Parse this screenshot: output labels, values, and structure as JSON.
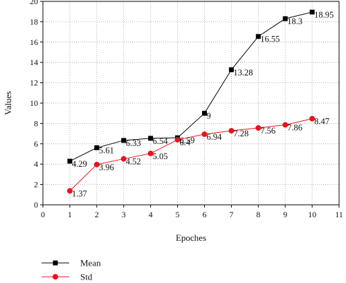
{
  "chart_data": {
    "type": "line",
    "title": "",
    "xlabel": "Epoches",
    "ylabel": "Values",
    "xlim": [
      0,
      11
    ],
    "ylim": [
      0,
      20
    ],
    "xticks": [
      0,
      1,
      2,
      3,
      4,
      5,
      6,
      7,
      8,
      9,
      10,
      11
    ],
    "yticks": [
      0,
      2,
      4,
      6,
      8,
      10,
      12,
      14,
      16,
      18,
      20
    ],
    "grid": "dotted",
    "legend_position": "bottom-left",
    "series": [
      {
        "name": "Mean",
        "marker": "square",
        "color": "#000000",
        "x": [
          1,
          2,
          3,
          4,
          5,
          6,
          7,
          8,
          9,
          10
        ],
        "y": [
          4.29,
          5.61,
          6.33,
          6.54,
          6.59,
          9,
          13.28,
          16.55,
          18.3,
          18.95
        ],
        "labels": [
          "4.29",
          "5.61",
          "6.33",
          "6.54",
          "6.59",
          "9",
          "13.28",
          "16.55",
          "18.3",
          "18.95"
        ]
      },
      {
        "name": "Std",
        "marker": "circle",
        "color": "#e8141c",
        "x": [
          1,
          2,
          3,
          4,
          5,
          6,
          7,
          8,
          9,
          10
        ],
        "y": [
          1.37,
          3.96,
          4.52,
          5.05,
          6.4,
          6.94,
          7.28,
          7.56,
          7.86,
          8.47
        ],
        "labels": [
          "1.37",
          "3.96",
          "4.52",
          "5.05",
          "6.4",
          "6.94",
          "7.28",
          "7.56",
          "7.86",
          "8.47"
        ]
      }
    ]
  }
}
